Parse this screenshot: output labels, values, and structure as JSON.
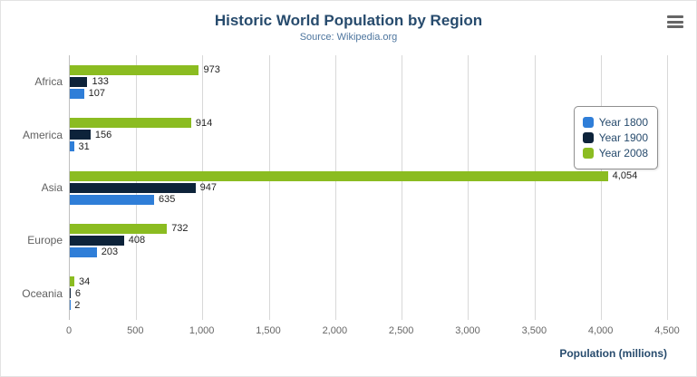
{
  "header": {
    "title": "Historic World Population by Region",
    "subtitle": "Source: Wikipedia.org"
  },
  "xaxis": {
    "title": "Population (millions)"
  },
  "chart_data": {
    "type": "bar",
    "orientation": "horizontal",
    "title": "Historic World Population by Region",
    "subtitle": "Source: Wikipedia.org",
    "xlabel": "Population (millions)",
    "categories": [
      "Africa",
      "America",
      "Asia",
      "Europe",
      "Oceania"
    ],
    "series": [
      {
        "name": "Year 1800",
        "color": "#2f7ed8",
        "values": [
          107,
          31,
          635,
          203,
          2
        ],
        "labels": [
          "107",
          "31",
          "635",
          "203",
          "2"
        ]
      },
      {
        "name": "Year 1900",
        "color": "#0d233a",
        "values": [
          133,
          156,
          947,
          408,
          6
        ],
        "labels": [
          "133",
          "156",
          "947",
          "408",
          "6"
        ]
      },
      {
        "name": "Year 2008",
        "color": "#8bbc21",
        "values": [
          973,
          914,
          4054,
          732,
          34
        ],
        "labels": [
          "973",
          "914",
          "4,054",
          "732",
          "34"
        ]
      }
    ],
    "xlim": [
      0,
      4500
    ],
    "xticks": [
      0,
      500,
      1000,
      1500,
      2000,
      2500,
      3000,
      3500,
      4000,
      4500
    ],
    "xtick_labels": [
      "0",
      "500",
      "1,000",
      "1,500",
      "2,000",
      "2,500",
      "3,000",
      "3,500",
      "4,000",
      "4,500"
    ],
    "grid": true,
    "legend_position": "right"
  }
}
